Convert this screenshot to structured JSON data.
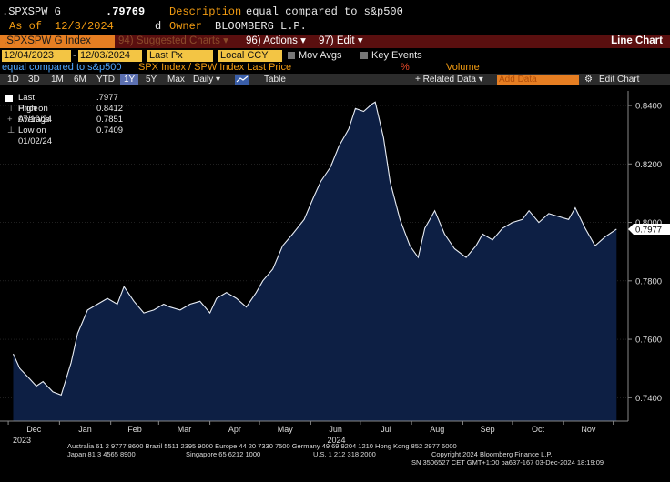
{
  "header": {
    "ticker": ".SPXSPW G",
    "price": ".79769",
    "desc_label": "Description",
    "desc_value": "equal compared to s&p500",
    "asof_label": "As of",
    "asof_value": "12/3/2024",
    "d_label": "d",
    "owner_label": "Owner",
    "owner_value": "BLOOMBERG L.P."
  },
  "toolbar": {
    "index_label": ".SPXSPW G Index",
    "suggested": "94) Suggested Charts ▾",
    "actions": "96) Actions ▾",
    "edit": "97) Edit ▾",
    "view": "Line Chart"
  },
  "controls": {
    "start_date": "12/04/2023",
    "end_date": "12/03/2024",
    "field": "Last Px",
    "currency": "Local CCY",
    "mov_avgs": "Mov Avgs",
    "key_events": "Key Events",
    "series_label": "equal compared to s&p500",
    "series_desc": "SPX Index / SPW Index Last Price",
    "pct": "%",
    "volume": "Volume",
    "periods": [
      "1D",
      "3D",
      "1M",
      "6M",
      "YTD",
      "1Y",
      "5Y",
      "Max"
    ],
    "active_period": "1Y",
    "frequency": "Daily ▾",
    "table": "Table",
    "related": "+ Related Data ▾",
    "add_data": "Add Data",
    "edit_chart": "Edit Chart"
  },
  "legend": {
    "last_price_label": "Last Price",
    "last_price_value": ".7977",
    "high_label": "High on 07/10/24",
    "high_value": "0.8412",
    "avg_label": "Average",
    "avg_value": "0.7851",
    "low_label": "Low on 01/02/24",
    "low_value": "0.7409"
  },
  "chart_data": {
    "type": "area",
    "title": "",
    "xlabel": "",
    "ylabel": "",
    "ylim": [
      0.732,
      0.845
    ],
    "yticks": [
      "0.8400",
      "0.8200",
      "0.8000",
      "0.7800",
      "0.7600",
      "0.7400"
    ],
    "month_labels": [
      "Dec",
      "Jan",
      "Feb",
      "Mar",
      "Apr",
      "May",
      "Jun",
      "Jul",
      "Aug",
      "Sep",
      "Oct",
      "Nov"
    ],
    "year_labels": [
      "2023",
      "2024"
    ],
    "last_value_label": "0.7977",
    "x": [
      "2023-12-04",
      "2023-12-08",
      "2023-12-13",
      "2023-12-18",
      "2023-12-22",
      "2023-12-28",
      "2024-01-02",
      "2024-01-08",
      "2024-01-12",
      "2024-01-18",
      "2024-01-24",
      "2024-01-30",
      "2024-02-05",
      "2024-02-09",
      "2024-02-15",
      "2024-02-21",
      "2024-02-27",
      "2024-03-04",
      "2024-03-08",
      "2024-03-14",
      "2024-03-20",
      "2024-03-26",
      "2024-04-01",
      "2024-04-05",
      "2024-04-11",
      "2024-04-17",
      "2024-04-23",
      "2024-04-29",
      "2024-05-03",
      "2024-05-09",
      "2024-05-15",
      "2024-05-21",
      "2024-05-28",
      "2024-06-03",
      "2024-06-07",
      "2024-06-13",
      "2024-06-18",
      "2024-06-24",
      "2024-06-28",
      "2024-07-03",
      "2024-07-08",
      "2024-07-10",
      "2024-07-15",
      "2024-07-19",
      "2024-07-25",
      "2024-07-31",
      "2024-08-05",
      "2024-08-09",
      "2024-08-15",
      "2024-08-21",
      "2024-08-27",
      "2024-09-03",
      "2024-09-09",
      "2024-09-13",
      "2024-09-19",
      "2024-09-25",
      "2024-10-01",
      "2024-10-07",
      "2024-10-11",
      "2024-10-17",
      "2024-10-23",
      "2024-10-29",
      "2024-11-04",
      "2024-11-08",
      "2024-11-14",
      "2024-11-20",
      "2024-11-26",
      "2024-12-03"
    ],
    "series": [
      {
        "values": [
          0.755,
          0.75,
          0.747,
          0.744,
          0.7455,
          0.742,
          0.7409,
          0.752,
          0.762,
          0.77,
          0.772,
          0.774,
          0.772,
          0.778,
          0.773,
          0.769,
          0.77,
          0.772,
          0.771,
          0.77,
          0.772,
          0.773,
          0.769,
          0.774,
          0.776,
          0.774,
          0.771,
          0.776,
          0.78,
          0.784,
          0.792,
          0.796,
          0.801,
          0.809,
          0.814,
          0.819,
          0.826,
          0.832,
          0.839,
          0.838,
          0.8405,
          0.8412,
          0.829,
          0.814,
          0.801,
          0.792,
          0.788,
          0.798,
          0.804,
          0.796,
          0.791,
          0.788,
          0.792,
          0.796,
          0.794,
          0.798,
          0.8,
          0.801,
          0.804,
          0.8,
          0.803,
          0.802,
          0.801,
          0.805,
          0.798,
          0.792,
          0.795,
          0.7977
        ]
      }
    ]
  },
  "footer": {
    "line1": "Australia 61 2 9777 8600 Brazil 5511 2395 9000 Europe 44 20 7330 7500 Germany 49 69 9204 1210 Hong Kong 852 2977 6000",
    "line2a": "Japan 81 3 4565 8900",
    "line2b": "Singapore 65 6212 1000",
    "line2c": "U.S. 1 212 318 2000",
    "line2d": "Copyright 2024 Bloomberg Finance L.P.",
    "line3": "SN 3506527 CET  GMT+1:00 ba637-167 03-Dec-2024 18:19:09"
  },
  "colors": {
    "accent": "#e67e22",
    "area_fill": "#0d1f44",
    "line": "#e8edf5",
    "field_bg": "#f3c544",
    "header_red": "#5a0f0f"
  }
}
